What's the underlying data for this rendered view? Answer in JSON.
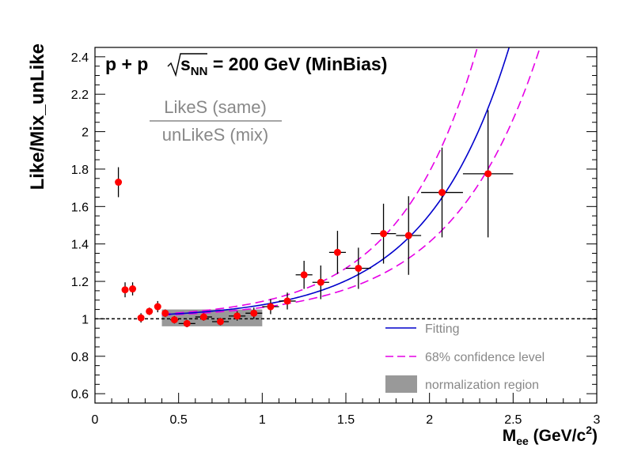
{
  "chart_data": {
    "type": "scatter",
    "title_main": "p + p",
    "title_sqrt_s": "s",
    "title_sqrt_sub": "NN",
    "title_tail": " = 200 GeV (MinBias)",
    "ylabel": "Like/Mix_unLike",
    "xlabel_main": "M",
    "xlabel_sub": "ee",
    "xlabel_unit": " (GeV/c",
    "xlabel_sup": "2",
    "xlabel_close": ")",
    "ratio_numerator": "LikeS (same)",
    "ratio_denominator": "unLikeS (mix)",
    "xlim": [
      0,
      3
    ],
    "ylim": [
      0.55,
      2.45
    ],
    "x_ticks": [
      {
        "value": 0,
        "label": "0"
      },
      {
        "value": 0.5,
        "label": "0.5"
      },
      {
        "value": 1,
        "label": "1"
      },
      {
        "value": 1.5,
        "label": "1.5"
      },
      {
        "value": 2,
        "label": "2"
      },
      {
        "value": 2.5,
        "label": "2.5"
      },
      {
        "value": 3,
        "label": "3"
      }
    ],
    "y_ticks": [
      {
        "value": 0.6,
        "label": "0.6"
      },
      {
        "value": 0.8,
        "label": "0.8"
      },
      {
        "value": 1.0,
        "label": "1"
      },
      {
        "value": 1.2,
        "label": "1.2"
      },
      {
        "value": 1.4,
        "label": "1.4"
      },
      {
        "value": 1.6,
        "label": "1.6"
      },
      {
        "value": 1.8,
        "label": "1.8"
      },
      {
        "value": 2.0,
        "label": "2"
      },
      {
        "value": 2.2,
        "label": "2.2"
      },
      {
        "value": 2.4,
        "label": "2.4"
      }
    ],
    "reference_line_y": 1.0,
    "normalization_region": {
      "x": [
        0.4,
        1.0
      ],
      "y": [
        0.96,
        1.05
      ]
    },
    "points": [
      {
        "x": 0.14,
        "y": 1.73,
        "xerr": 0.0,
        "yerr": 0.08
      },
      {
        "x": 0.18,
        "y": 1.155,
        "xerr": 0.0,
        "yerr": 0.04
      },
      {
        "x": 0.225,
        "y": 1.16,
        "xerr": 0.0,
        "yerr": 0.035
      },
      {
        "x": 0.275,
        "y": 1.005,
        "xerr": 0.0,
        "yerr": 0.025
      },
      {
        "x": 0.325,
        "y": 1.04,
        "xerr": 0.0,
        "yerr": 0.02
      },
      {
        "x": 0.375,
        "y": 1.065,
        "xerr": 0.0,
        "yerr": 0.03
      },
      {
        "x": 0.42,
        "y": 1.03,
        "xerr": 0.02,
        "yerr": 0.02
      },
      {
        "x": 0.475,
        "y": 0.995,
        "xerr": 0.025,
        "yerr": 0.02
      },
      {
        "x": 0.55,
        "y": 0.975,
        "xerr": 0.05,
        "yerr": 0.02
      },
      {
        "x": 0.65,
        "y": 1.01,
        "xerr": 0.05,
        "yerr": 0.02
      },
      {
        "x": 0.75,
        "y": 0.985,
        "xerr": 0.05,
        "yerr": 0.02
      },
      {
        "x": 0.85,
        "y": 1.015,
        "xerr": 0.05,
        "yerr": 0.025
      },
      {
        "x": 0.95,
        "y": 1.03,
        "xerr": 0.05,
        "yerr": 0.03
      },
      {
        "x": 1.05,
        "y": 1.065,
        "xerr": 0.05,
        "yerr": 0.04
      },
      {
        "x": 1.15,
        "y": 1.095,
        "xerr": 0.05,
        "yerr": 0.045
      },
      {
        "x": 1.25,
        "y": 1.235,
        "xerr": 0.05,
        "yerr": 0.075
      },
      {
        "x": 1.35,
        "y": 1.195,
        "xerr": 0.05,
        "yerr": 0.09
      },
      {
        "x": 1.45,
        "y": 1.355,
        "xerr": 0.05,
        "yerr": 0.115
      },
      {
        "x": 1.575,
        "y": 1.27,
        "xerr": 0.075,
        "yerr": 0.11
      },
      {
        "x": 1.725,
        "y": 1.455,
        "xerr": 0.075,
        "yerr": 0.16
      },
      {
        "x": 1.875,
        "y": 1.445,
        "xerr": 0.075,
        "yerr": 0.21
      },
      {
        "x": 2.075,
        "y": 1.675,
        "xerr": 0.125,
        "yerr": 0.24
      },
      {
        "x": 2.35,
        "y": 1.775,
        "xerr": 0.15,
        "yerr": 0.34
      }
    ],
    "fit_curve": {
      "a": 1.0,
      "b": 0.01,
      "c": 2.01
    },
    "confidence_upper": {
      "a": 1.0,
      "b": 0.011,
      "c": 2.135
    },
    "confidence_lower": {
      "a": 1.0,
      "b": 0.009,
      "c": 1.91
    },
    "legend": {
      "placement": "bottom-right",
      "fit_label": "Fitting",
      "confidence_label": "68% confidence level",
      "region_label": "normalization region"
    },
    "colors": {
      "marker": "#ff0000",
      "fit": "#0000cc",
      "confidence": "#e600e6",
      "region": "#999999",
      "text_gray": "#888888"
    }
  }
}
